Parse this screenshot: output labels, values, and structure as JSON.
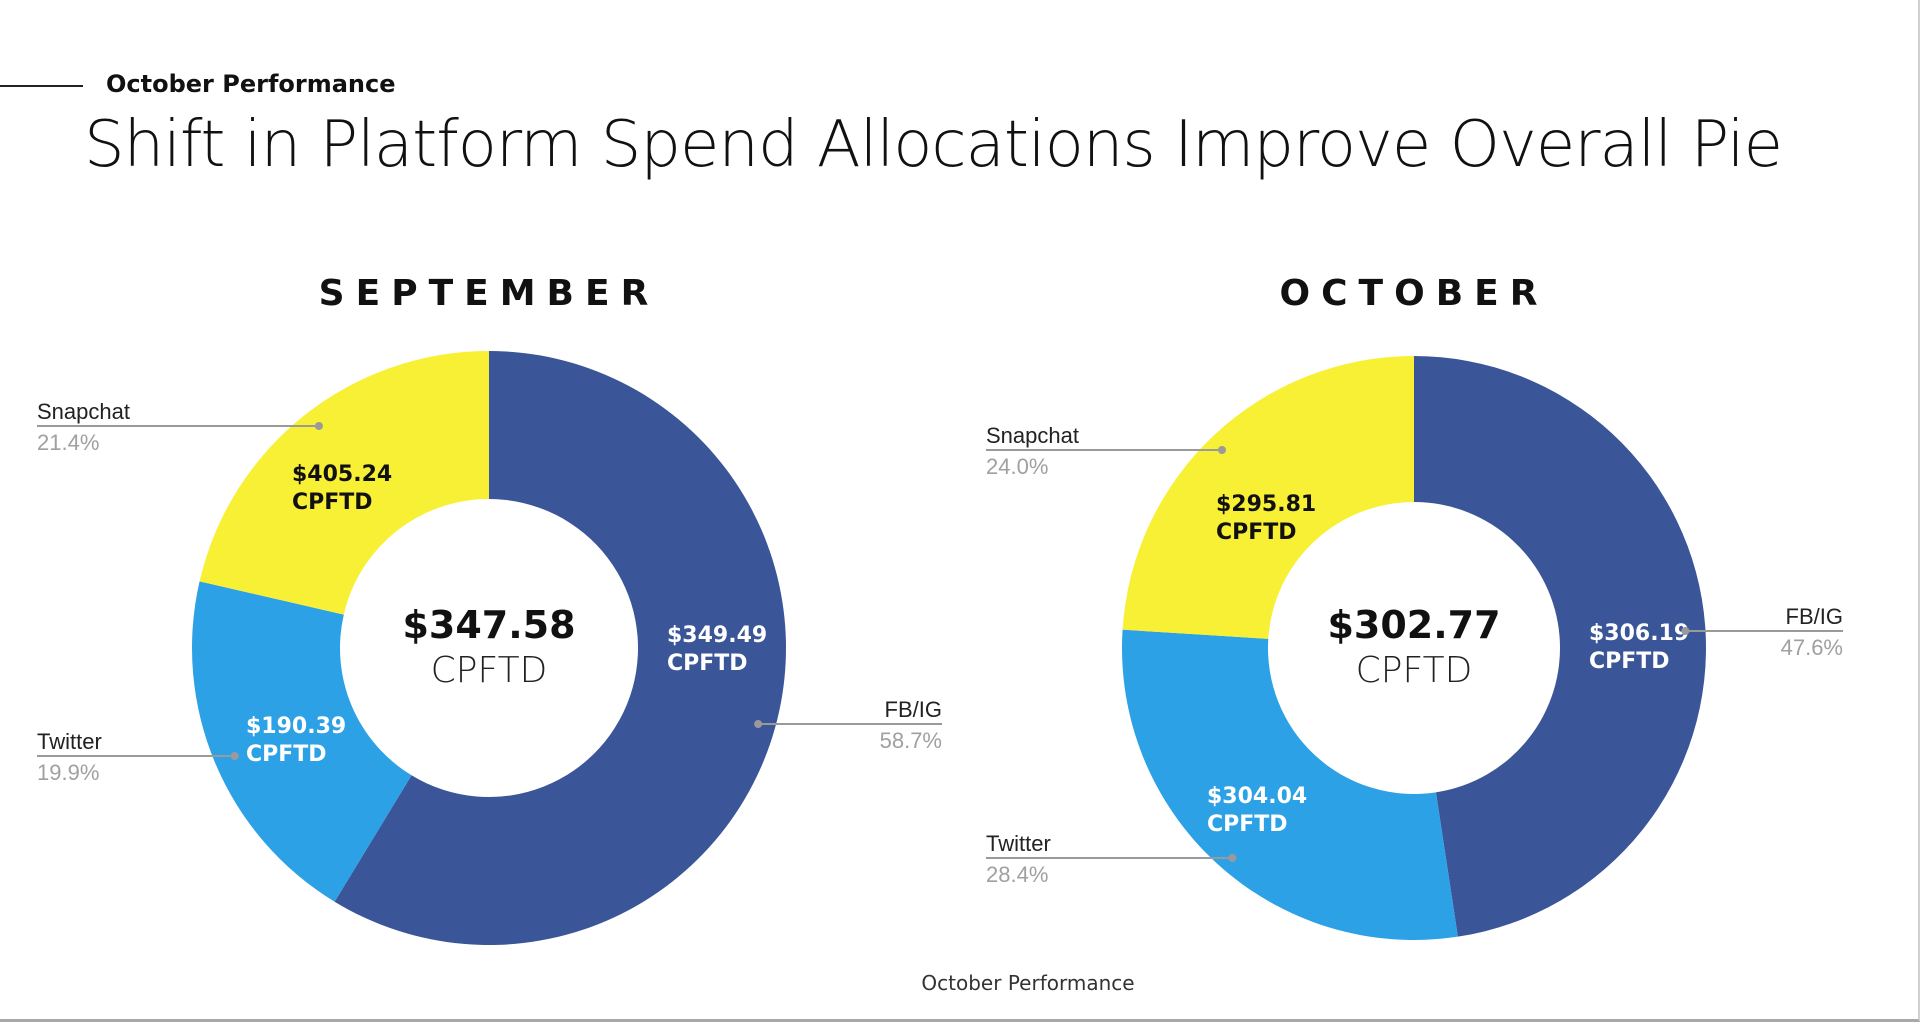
{
  "header": {
    "section_label": "October Performance",
    "title": "Shift in Platform Spend Allocations Improve Overall Pie"
  },
  "footer": {
    "text": "October Performance"
  },
  "colors": {
    "FB/IG": "#3a5598",
    "Twitter": "#2da1e6",
    "Snapchat": "#f7f035"
  },
  "chart_data": [
    {
      "type": "pie",
      "variant": "donut",
      "title": "SEPTEMBER",
      "center": {
        "value": "$347.58",
        "unit": "CPFTD"
      },
      "slices": [
        {
          "name": "FB/IG",
          "share": 58.7,
          "share_label": "58.7%",
          "value_label": "$349.49",
          "unit": "CPFTD"
        },
        {
          "name": "Twitter",
          "share": 19.9,
          "share_label": "19.9%",
          "value_label": "$190.39",
          "unit": "CPFTD"
        },
        {
          "name": "Snapchat",
          "share": 21.4,
          "share_label": "21.4%",
          "value_label": "$405.24",
          "unit": "CPFTD"
        }
      ]
    },
    {
      "type": "pie",
      "variant": "donut",
      "title": "OCTOBER",
      "center": {
        "value": "$302.77",
        "unit": "CPFTD"
      },
      "slices": [
        {
          "name": "FB/IG",
          "share": 47.6,
          "share_label": "47.6%",
          "value_label": "$306.19",
          "unit": "CPFTD"
        },
        {
          "name": "Twitter",
          "share": 28.4,
          "share_label": "28.4%",
          "value_label": "$304.04",
          "unit": "CPFTD"
        },
        {
          "name": "Snapchat",
          "share": 24.0,
          "share_label": "24.0%",
          "value_label": "$295.81",
          "unit": "CPFTD"
        }
      ]
    }
  ]
}
